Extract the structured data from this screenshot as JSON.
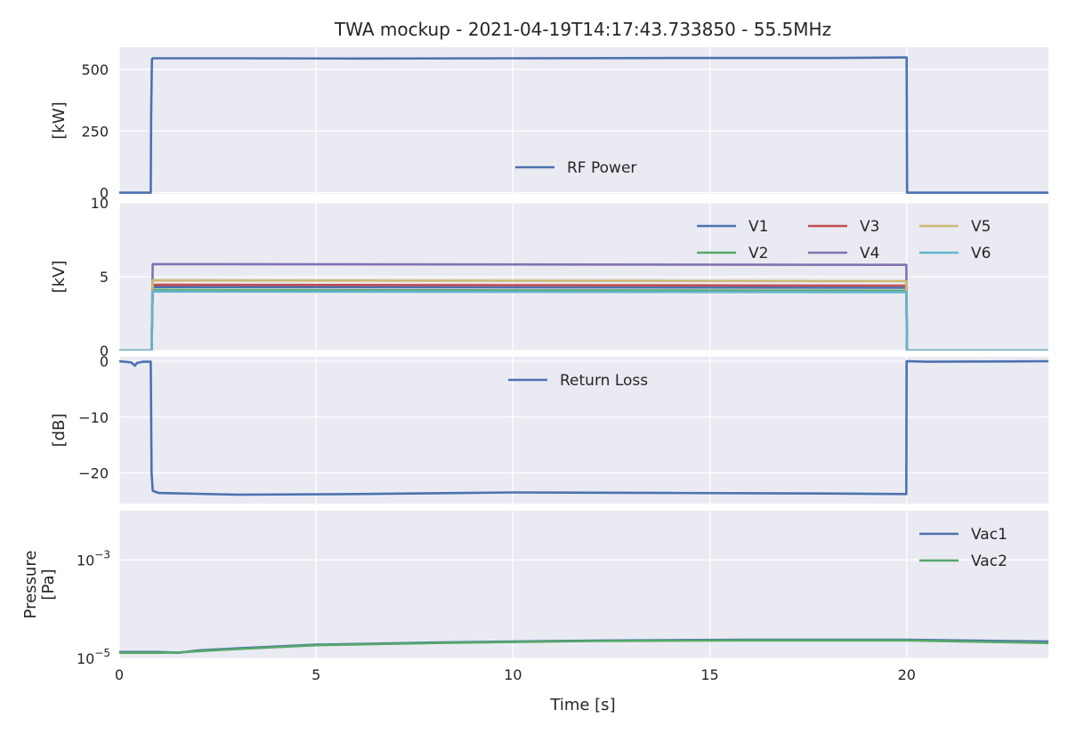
{
  "title": "TWA mockup - 2021-04-19T14:17:43.733850 - 55.5MHz",
  "xlabel": "Time [s]",
  "xlim": [
    0,
    23.6
  ],
  "xticks": [
    0,
    5,
    10,
    15,
    20
  ],
  "chart_data": [
    {
      "type": "line",
      "ylabel": "[kW]",
      "ylim": [
        -5,
        590
      ],
      "yticks": [
        0,
        250,
        500
      ],
      "legend_loc": "lower center",
      "legend_ncol": 1,
      "series": [
        {
          "name": "RF Power",
          "color": "#4c72b0",
          "x": [
            0,
            0.8,
            0.81,
            0.83,
            0.85,
            3,
            6,
            10,
            14,
            18,
            19.99,
            20.0,
            20.01,
            23.6
          ],
          "y": [
            0,
            0,
            300,
            540,
            545,
            545,
            544,
            545,
            546,
            546,
            548,
            548,
            0,
            0
          ]
        }
      ]
    },
    {
      "type": "line",
      "ylabel": "[kV]",
      "ylim": [
        0,
        10
      ],
      "yticks": [
        0,
        5,
        10
      ],
      "legend_loc": "upper right",
      "legend_ncol": 3,
      "series": [
        {
          "name": "V1",
          "color": "#4c72b0",
          "x": [
            0,
            0.82,
            0.85,
            19.99,
            20.01,
            23.6
          ],
          "y": [
            0,
            0,
            4.3,
            4.25,
            0,
            0
          ]
        },
        {
          "name": "V2",
          "color": "#55a868",
          "x": [
            0,
            0.82,
            0.85,
            19.99,
            20.01,
            23.6
          ],
          "y": [
            0,
            0,
            4.1,
            4.05,
            0,
            0
          ]
        },
        {
          "name": "V3",
          "color": "#c44e52",
          "x": [
            0,
            0.82,
            0.85,
            19.99,
            20.01,
            23.6
          ],
          "y": [
            0,
            0,
            4.45,
            4.4,
            0,
            0
          ]
        },
        {
          "name": "V4",
          "color": "#8172b2",
          "x": [
            0,
            0.82,
            0.85,
            19.99,
            20.01,
            23.6
          ],
          "y": [
            0,
            0,
            5.85,
            5.8,
            0,
            0
          ]
        },
        {
          "name": "V5",
          "color": "#ccb974",
          "x": [
            0,
            0.82,
            0.85,
            19.99,
            20.01,
            23.6
          ],
          "y": [
            0,
            0,
            4.75,
            4.7,
            0,
            0
          ]
        },
        {
          "name": "V6",
          "color": "#64b5cd",
          "x": [
            0,
            0.82,
            0.85,
            19.99,
            20.01,
            23.6
          ],
          "y": [
            0,
            0,
            4.0,
            3.95,
            0,
            0
          ]
        }
      ]
    },
    {
      "type": "line",
      "ylabel": "[dB]",
      "ylim": [
        -25.5,
        0.8
      ],
      "yticks": [
        -20,
        -10,
        0
      ],
      "legend_loc": "upper center",
      "legend_ncol": 1,
      "series": [
        {
          "name": "Return Loss",
          "color": "#4c72b0",
          "x": [
            0,
            0.3,
            0.4,
            0.45,
            0.6,
            0.8,
            0.82,
            0.85,
            1.0,
            3,
            6,
            10,
            14,
            18,
            19.99,
            20.0,
            20.5,
            23.6
          ],
          "y": [
            0,
            -0.2,
            -0.8,
            -0.3,
            -0.1,
            -0.1,
            -20,
            -23.2,
            -23.6,
            -23.9,
            -23.8,
            -23.5,
            -23.6,
            -23.7,
            -23.8,
            0,
            -0.1,
            0
          ]
        }
      ]
    },
    {
      "type": "line",
      "ylabel": "Pressure\n[Pa]",
      "yscale": "log",
      "ylim": [
        1e-05,
        0.01
      ],
      "yticks": [
        1e-05,
        0.001
      ],
      "ytick_labels": [
        {
          "base": "10",
          "exp": "−5"
        },
        {
          "base": "10",
          "exp": "−3"
        }
      ],
      "legend_loc": "upper right",
      "legend_ncol": 1,
      "series": [
        {
          "name": "Vac1",
          "color": "#4c72b0",
          "x": [
            0,
            1,
            1.5,
            2,
            3,
            5,
            8,
            12,
            16,
            20,
            23.6
          ],
          "y": [
            1.35e-05,
            1.35e-05,
            1.3e-05,
            1.45e-05,
            1.6e-05,
            1.9e-05,
            2.1e-05,
            2.3e-05,
            2.4e-05,
            2.4e-05,
            2.2e-05
          ]
        },
        {
          "name": "Vac2",
          "color": "#55a868",
          "x": [
            0,
            1,
            1.5,
            2,
            3,
            5,
            8,
            12,
            16,
            20,
            23.6
          ],
          "y": [
            1.3e-05,
            1.3e-05,
            1.32e-05,
            1.4e-05,
            1.55e-05,
            1.85e-05,
            2.05e-05,
            2.25e-05,
            2.32e-05,
            2.32e-05,
            2.05e-05
          ]
        }
      ]
    }
  ]
}
